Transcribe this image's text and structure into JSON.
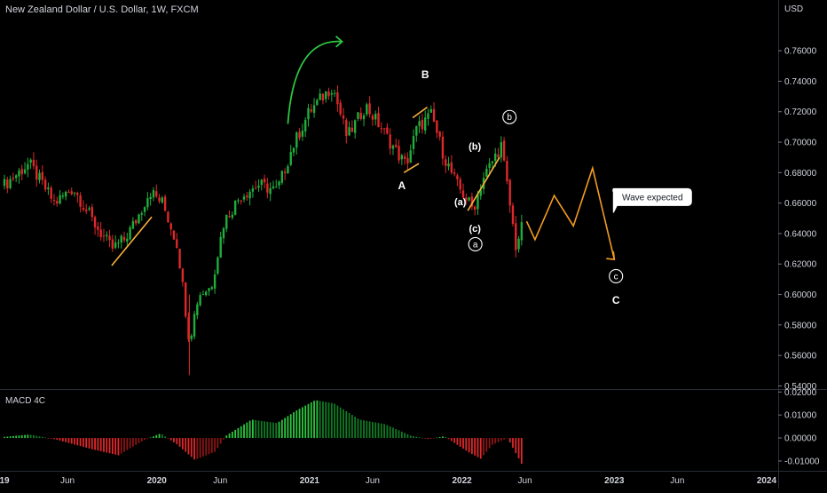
{
  "chart_data": [
    {
      "type": "candlestick",
      "title": "New Zealand Dollar / U.S. Dollar, 1W, FXCM",
      "currency": "USD",
      "ylim": [
        0.535,
        0.77
      ],
      "y_ticks": [
        "0.76000",
        "0.74000",
        "0.72000",
        "0.70000",
        "0.68000",
        "0.66000",
        "0.64000",
        "0.62000",
        "0.60000",
        "0.58000",
        "0.56000",
        "0.54000"
      ],
      "y_tick_values": [
        0.76,
        0.74,
        0.72,
        0.7,
        0.68,
        0.66,
        0.64,
        0.62,
        0.6,
        0.58,
        0.56,
        0.54
      ],
      "x_ticks": [
        "19",
        "Jun",
        "2020",
        "Jun",
        "2021",
        "Jun",
        "2022",
        "Jun",
        "2023",
        "Jun",
        "2024"
      ],
      "x_tick_dates": [
        "2019-01-01",
        "2019-06-01",
        "2020-01-01",
        "2020-06-01",
        "2021-01-01",
        "2021-06-01",
        "2022-01-01",
        "2022-06-01",
        "2023-01-01",
        "2023-06-01",
        "2024-01-01"
      ],
      "xlim": [
        "2019-01-01",
        "2024-01-01"
      ],
      "close_trace": [
        {
          "date": "2019-01-01",
          "close": 0.672
        },
        {
          "date": "2019-03-01",
          "close": 0.686
        },
        {
          "date": "2019-05-01",
          "close": 0.66
        },
        {
          "date": "2019-06-15",
          "close": 0.67
        },
        {
          "date": "2019-08-01",
          "close": 0.648
        },
        {
          "date": "2019-09-15",
          "close": 0.63
        },
        {
          "date": "2019-10-15",
          "close": 0.636
        },
        {
          "date": "2019-11-15",
          "close": 0.65
        },
        {
          "date": "2019-12-15",
          "close": 0.668
        },
        {
          "date": "2020-01-15",
          "close": 0.66
        },
        {
          "date": "2020-02-20",
          "close": 0.632
        },
        {
          "date": "2020-03-19",
          "close": 0.57
        },
        {
          "date": "2020-04-10",
          "close": 0.6
        },
        {
          "date": "2020-05-10",
          "close": 0.605
        },
        {
          "date": "2020-06-10",
          "close": 0.648
        },
        {
          "date": "2020-07-20",
          "close": 0.665
        },
        {
          "date": "2020-09-01",
          "close": 0.672
        },
        {
          "date": "2020-10-15",
          "close": 0.668
        },
        {
          "date": "2020-11-20",
          "close": 0.696
        },
        {
          "date": "2020-12-31",
          "close": 0.72
        },
        {
          "date": "2021-02-25",
          "close": 0.737
        },
        {
          "date": "2021-04-01",
          "close": 0.703
        },
        {
          "date": "2021-05-15",
          "close": 0.724
        },
        {
          "date": "2021-06-20",
          "close": 0.71
        },
        {
          "date": "2021-08-01",
          "close": 0.692
        },
        {
          "date": "2021-08-20",
          "close": 0.685
        },
        {
          "date": "2021-09-15",
          "close": 0.709
        },
        {
          "date": "2021-10-20",
          "close": 0.718
        },
        {
          "date": "2021-11-20",
          "close": 0.69
        },
        {
          "date": "2021-12-20",
          "close": 0.672
        },
        {
          "date": "2022-01-28",
          "close": 0.656
        },
        {
          "date": "2022-02-20",
          "close": 0.676
        },
        {
          "date": "2022-04-05",
          "close": 0.698
        },
        {
          "date": "2022-05-10",
          "close": 0.632
        },
        {
          "date": "2022-05-25",
          "close": 0.644
        }
      ],
      "projection": [
        {
          "date": "2022-06-05",
          "value": 0.648
        },
        {
          "date": "2022-06-25",
          "value": 0.636
        },
        {
          "date": "2022-08-10",
          "value": 0.665
        },
        {
          "date": "2022-09-25",
          "value": 0.645
        },
        {
          "date": "2022-11-10",
          "value": 0.683
        },
        {
          "date": "2023-01-01",
          "value": 0.623
        }
      ],
      "annotations": {
        "wave_B": "B",
        "wave_A": "A",
        "wave_C": "C",
        "sub_a": "(a)",
        "sub_b": "(b)",
        "sub_c": "(c)",
        "circ_a": "a",
        "circ_b": "b",
        "circ_c": "c",
        "callout": "Wave expected"
      },
      "colors": {
        "up": "#1fae3c",
        "down": "#e0282a",
        "projection": "#f39c1f",
        "trendline": "#f6b23c",
        "arrow": "#2cc63f",
        "background": "#000000",
        "text": "#d1d4dc"
      }
    },
    {
      "type": "histogram",
      "title": "MACD 4C",
      "ylim": [
        -0.0135,
        0.0205
      ],
      "y_ticks": [
        "0.02000",
        "0.01000",
        "0.00000",
        "-0.01000"
      ],
      "y_tick_values": [
        0.02,
        0.01,
        0.0,
        -0.01
      ],
      "values_trace": [
        {
          "date": "2019-01-01",
          "value": 0.0005
        },
        {
          "date": "2019-03-01",
          "value": 0.0015
        },
        {
          "date": "2019-05-01",
          "value": -0.0005
        },
        {
          "date": "2019-08-01",
          "value": -0.005
        },
        {
          "date": "2019-10-01",
          "value": -0.0075
        },
        {
          "date": "2019-12-01",
          "value": -0.001
        },
        {
          "date": "2020-01-10",
          "value": 0.002
        },
        {
          "date": "2020-02-20",
          "value": -0.003
        },
        {
          "date": "2020-04-01",
          "value": -0.0095
        },
        {
          "date": "2020-05-20",
          "value": -0.006
        },
        {
          "date": "2020-06-15",
          "value": 0.001
        },
        {
          "date": "2020-08-15",
          "value": 0.008
        },
        {
          "date": "2020-10-15",
          "value": 0.0065
        },
        {
          "date": "2020-12-01",
          "value": 0.012
        },
        {
          "date": "2021-01-15",
          "value": 0.0165
        },
        {
          "date": "2021-03-01",
          "value": 0.015
        },
        {
          "date": "2021-05-01",
          "value": 0.008
        },
        {
          "date": "2021-07-01",
          "value": 0.006
        },
        {
          "date": "2021-09-01",
          "value": 0.001
        },
        {
          "date": "2021-10-15",
          "value": -0.0005
        },
        {
          "date": "2021-11-20",
          "value": 0.0008
        },
        {
          "date": "2022-01-15",
          "value": -0.006
        },
        {
          "date": "2022-02-15",
          "value": -0.009
        },
        {
          "date": "2022-03-15",
          "value": -0.003
        },
        {
          "date": "2022-04-20",
          "value": 0.0
        },
        {
          "date": "2022-05-25",
          "value": -0.0115
        }
      ],
      "colors": {
        "rising_pos": "#2cc63f",
        "falling_pos": "#117a25",
        "falling_neg": "#e0282a",
        "rising_neg": "#8a1515"
      }
    }
  ]
}
